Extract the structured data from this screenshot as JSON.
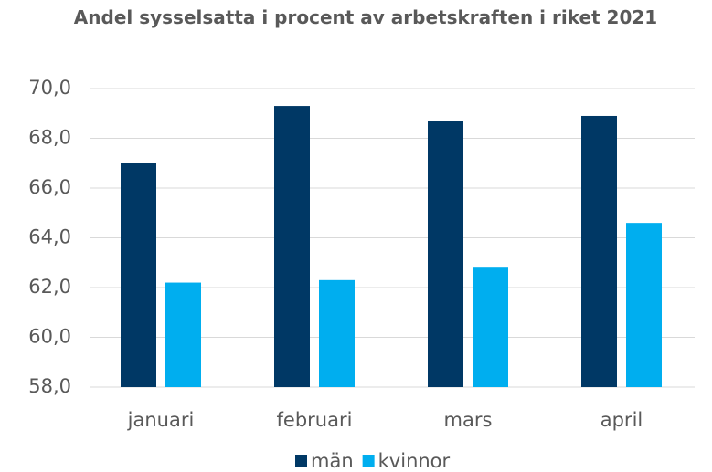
{
  "chart_data": {
    "type": "bar",
    "title": "Andel sysselsatta i procent av arbetskraften i riket 2021",
    "categories": [
      "januari",
      "februari",
      "mars",
      "april"
    ],
    "series": [
      {
        "name": "män",
        "color": "#003865",
        "values": [
          67.0,
          69.3,
          68.7,
          68.9
        ]
      },
      {
        "name": "kvinnor",
        "color": "#00aeef",
        "values": [
          62.2,
          62.3,
          62.8,
          64.6
        ]
      }
    ],
    "ylim": [
      58,
      70
    ],
    "yticks": [
      {
        "value": 58,
        "label": "58,0"
      },
      {
        "value": 60,
        "label": "60,0"
      },
      {
        "value": 62,
        "label": "62,0"
      },
      {
        "value": 64,
        "label": "64,0"
      },
      {
        "value": 66,
        "label": "66,0"
      },
      {
        "value": 68,
        "label": "68,0"
      },
      {
        "value": 70,
        "label": "70,0"
      }
    ],
    "grid": true,
    "legend": "bottom"
  }
}
